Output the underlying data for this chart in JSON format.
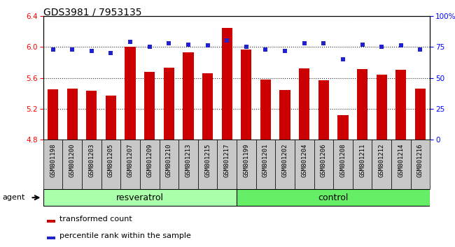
{
  "title": "GDS3981 / 7953135",
  "samples": [
    "GSM801198",
    "GSM801200",
    "GSM801203",
    "GSM801205",
    "GSM801207",
    "GSM801209",
    "GSM801210",
    "GSM801213",
    "GSM801215",
    "GSM801217",
    "GSM801199",
    "GSM801201",
    "GSM801202",
    "GSM801204",
    "GSM801206",
    "GSM801208",
    "GSM801211",
    "GSM801212",
    "GSM801214",
    "GSM801216"
  ],
  "bar_values": [
    5.45,
    5.46,
    5.43,
    5.37,
    6.0,
    5.68,
    5.73,
    5.93,
    5.66,
    6.25,
    5.97,
    5.58,
    5.44,
    5.72,
    5.57,
    5.12,
    5.71,
    5.64,
    5.7,
    5.46
  ],
  "percentile_values": [
    73,
    73,
    72,
    70,
    79,
    75,
    78,
    77,
    76,
    80,
    75,
    73,
    72,
    78,
    78,
    65,
    77,
    75,
    76,
    73
  ],
  "groups": {
    "resveratrol": [
      0,
      9
    ],
    "control": [
      10,
      19
    ]
  },
  "ylim_left": [
    4.8,
    6.4
  ],
  "ylim_right": [
    0,
    100
  ],
  "bar_color": "#cc0000",
  "dot_color": "#2222cc",
  "tick_bg_color": "#c8c8c8",
  "resveratrol_color": "#aaffaa",
  "control_color": "#66ee66",
  "label_bar": "transformed count",
  "label_dot": "percentile rank within the sample",
  "agent_label": "agent",
  "title_fontsize": 10,
  "tick_fontsize": 6.5,
  "label_fontsize": 8,
  "group_fontsize": 9
}
